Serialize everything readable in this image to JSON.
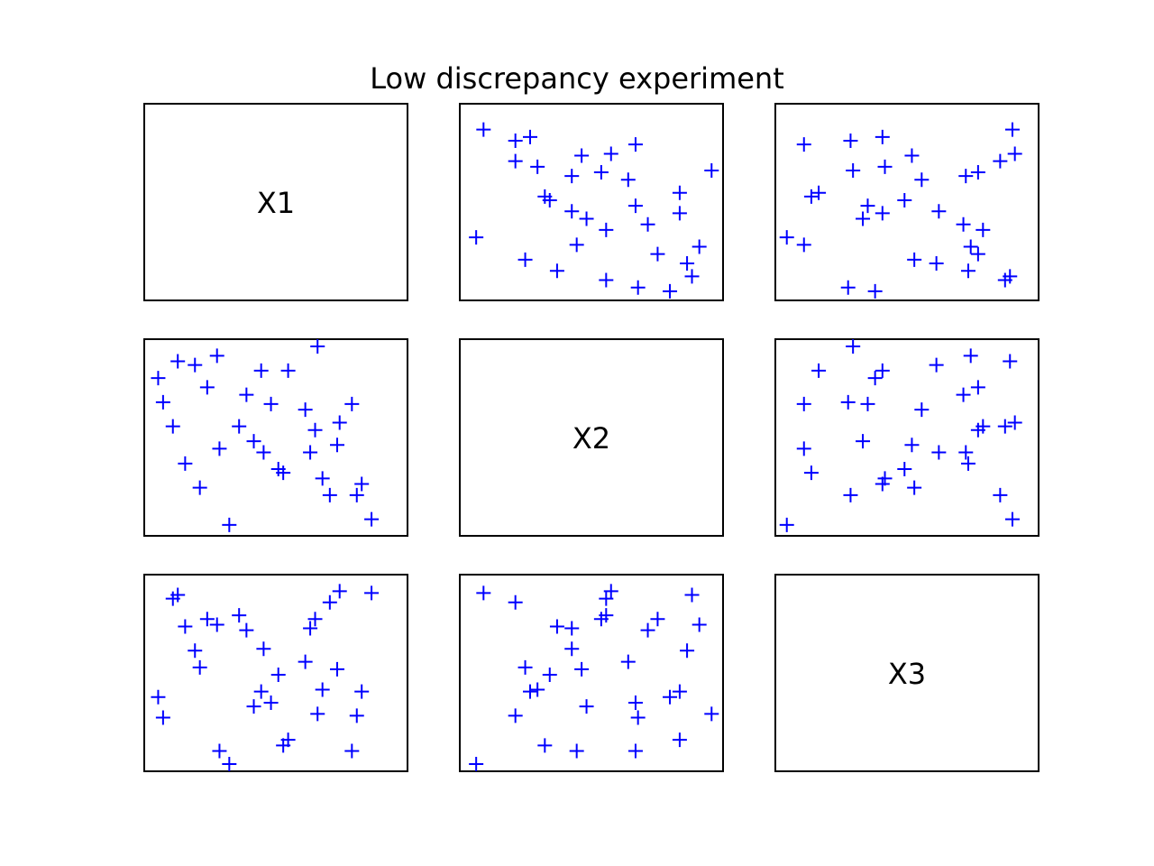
{
  "title": "Low discrepancy experiment",
  "colors": {
    "marker": "#0000ff",
    "frame": "#000000"
  },
  "marker": "+",
  "chart_data": {
    "type": "scatter",
    "title": "Low discrepancy experiment",
    "grid": false,
    "layout": "3x3 scatter matrix, diagonal panels labeled, no axes ticks",
    "variables": [
      "X1",
      "X2",
      "X3"
    ],
    "samples": {
      "X1": [
        0.1,
        0.22,
        0.26,
        0.35,
        0.38,
        0.45,
        0.48,
        0.51,
        0.62,
        0.66,
        0.67,
        0.72,
        0.75,
        0.76,
        0.83,
        0.89,
        0.02,
        0.04,
        0.08,
        0.13,
        0.17,
        0.19,
        0.27,
        0.31,
        0.41,
        0.44,
        0.53,
        0.55,
        0.64,
        0.69,
        0.81,
        0.85
      ],
      "X2": [
        0.91,
        0.77,
        0.94,
        0.56,
        0.73,
        0.42,
        0.68,
        0.33,
        0.65,
        0.54,
        0.99,
        0.19,
        0.46,
        0.58,
        0.19,
        0.06,
        0.82,
        0.69,
        0.56,
        0.36,
        0.89,
        0.23,
        0.44,
        0.03,
        0.48,
        0.86,
        0.31,
        0.86,
        0.42,
        0.28,
        0.68,
        0.25
      ],
      "X3": [
        0.92,
        0.79,
        0.76,
        0.81,
        0.73,
        0.63,
        0.34,
        0.49,
        0.56,
        0.79,
        0.28,
        0.88,
        0.52,
        0.94,
        0.27,
        0.93,
        0.37,
        0.26,
        0.9,
        0.75,
        0.62,
        0.53,
        0.08,
        0.01,
        0.32,
        0.4,
        0.11,
        0.14,
        0.74,
        0.41,
        0.08,
        0.4
      ]
    }
  }
}
